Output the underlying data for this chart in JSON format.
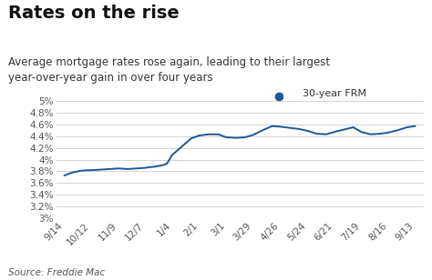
{
  "title": "Rates on the rise",
  "subtitle": "Average mortgage rates rose again, leading to their largest\nyear-over-year gain in over four years",
  "source": "Source: Freddie Mac",
  "legend_label": "30-year FRM",
  "line_color": "#1a5899",
  "dot_color": "#1a5899",
  "background_color": "#ffffff",
  "x_labels": [
    "9/14",
    "10/12",
    "11/9",
    "12/7",
    "1/4",
    "2/1",
    "3/1",
    "3/29",
    "4/26",
    "5/24",
    "6/21",
    "7/19",
    "8/16",
    "9/13"
  ],
  "ylim": [
    3.0,
    5.0
  ],
  "yticks": [
    3.0,
    3.2,
    3.4,
    3.6,
    3.8,
    4.0,
    4.2,
    4.4,
    4.6,
    4.8,
    5.0
  ],
  "ytick_labels": [
    "3%",
    "3.2%",
    "3.4%",
    "3.6%",
    "3.8%",
    "4%",
    "4.2%",
    "4.4%",
    "4.6%",
    "4.8%",
    "5%"
  ],
  "grid_color": "#cccccc",
  "title_fontsize": 14,
  "subtitle_fontsize": 8.5,
  "tick_fontsize": 7.5,
  "source_fontsize": 7.5,
  "data_x": [
    0,
    0.3,
    0.6,
    0.85,
    1.0,
    1.35,
    1.7,
    2.0,
    2.35,
    2.7,
    3.0,
    3.15,
    3.35,
    3.6,
    3.8,
    4.0,
    4.35,
    4.7,
    5.0,
    5.35,
    5.7,
    6.0,
    6.35,
    6.7,
    7.0,
    7.35,
    7.7,
    8.0,
    8.35,
    8.7,
    9.0,
    9.35,
    9.7,
    10.0,
    10.35,
    10.7,
    11.0,
    11.35,
    11.7,
    12.0,
    12.35,
    12.7,
    13.0
  ],
  "data_y": [
    3.73,
    3.78,
    3.81,
    3.82,
    3.82,
    3.83,
    3.84,
    3.85,
    3.84,
    3.85,
    3.86,
    3.87,
    3.88,
    3.9,
    3.93,
    4.08,
    4.22,
    4.36,
    4.41,
    4.43,
    4.43,
    4.38,
    4.37,
    4.38,
    4.42,
    4.5,
    4.57,
    4.56,
    4.54,
    4.52,
    4.49,
    4.44,
    4.43,
    4.47,
    4.51,
    4.55,
    4.47,
    4.43,
    4.44,
    4.46,
    4.5,
    4.55,
    4.57
  ]
}
